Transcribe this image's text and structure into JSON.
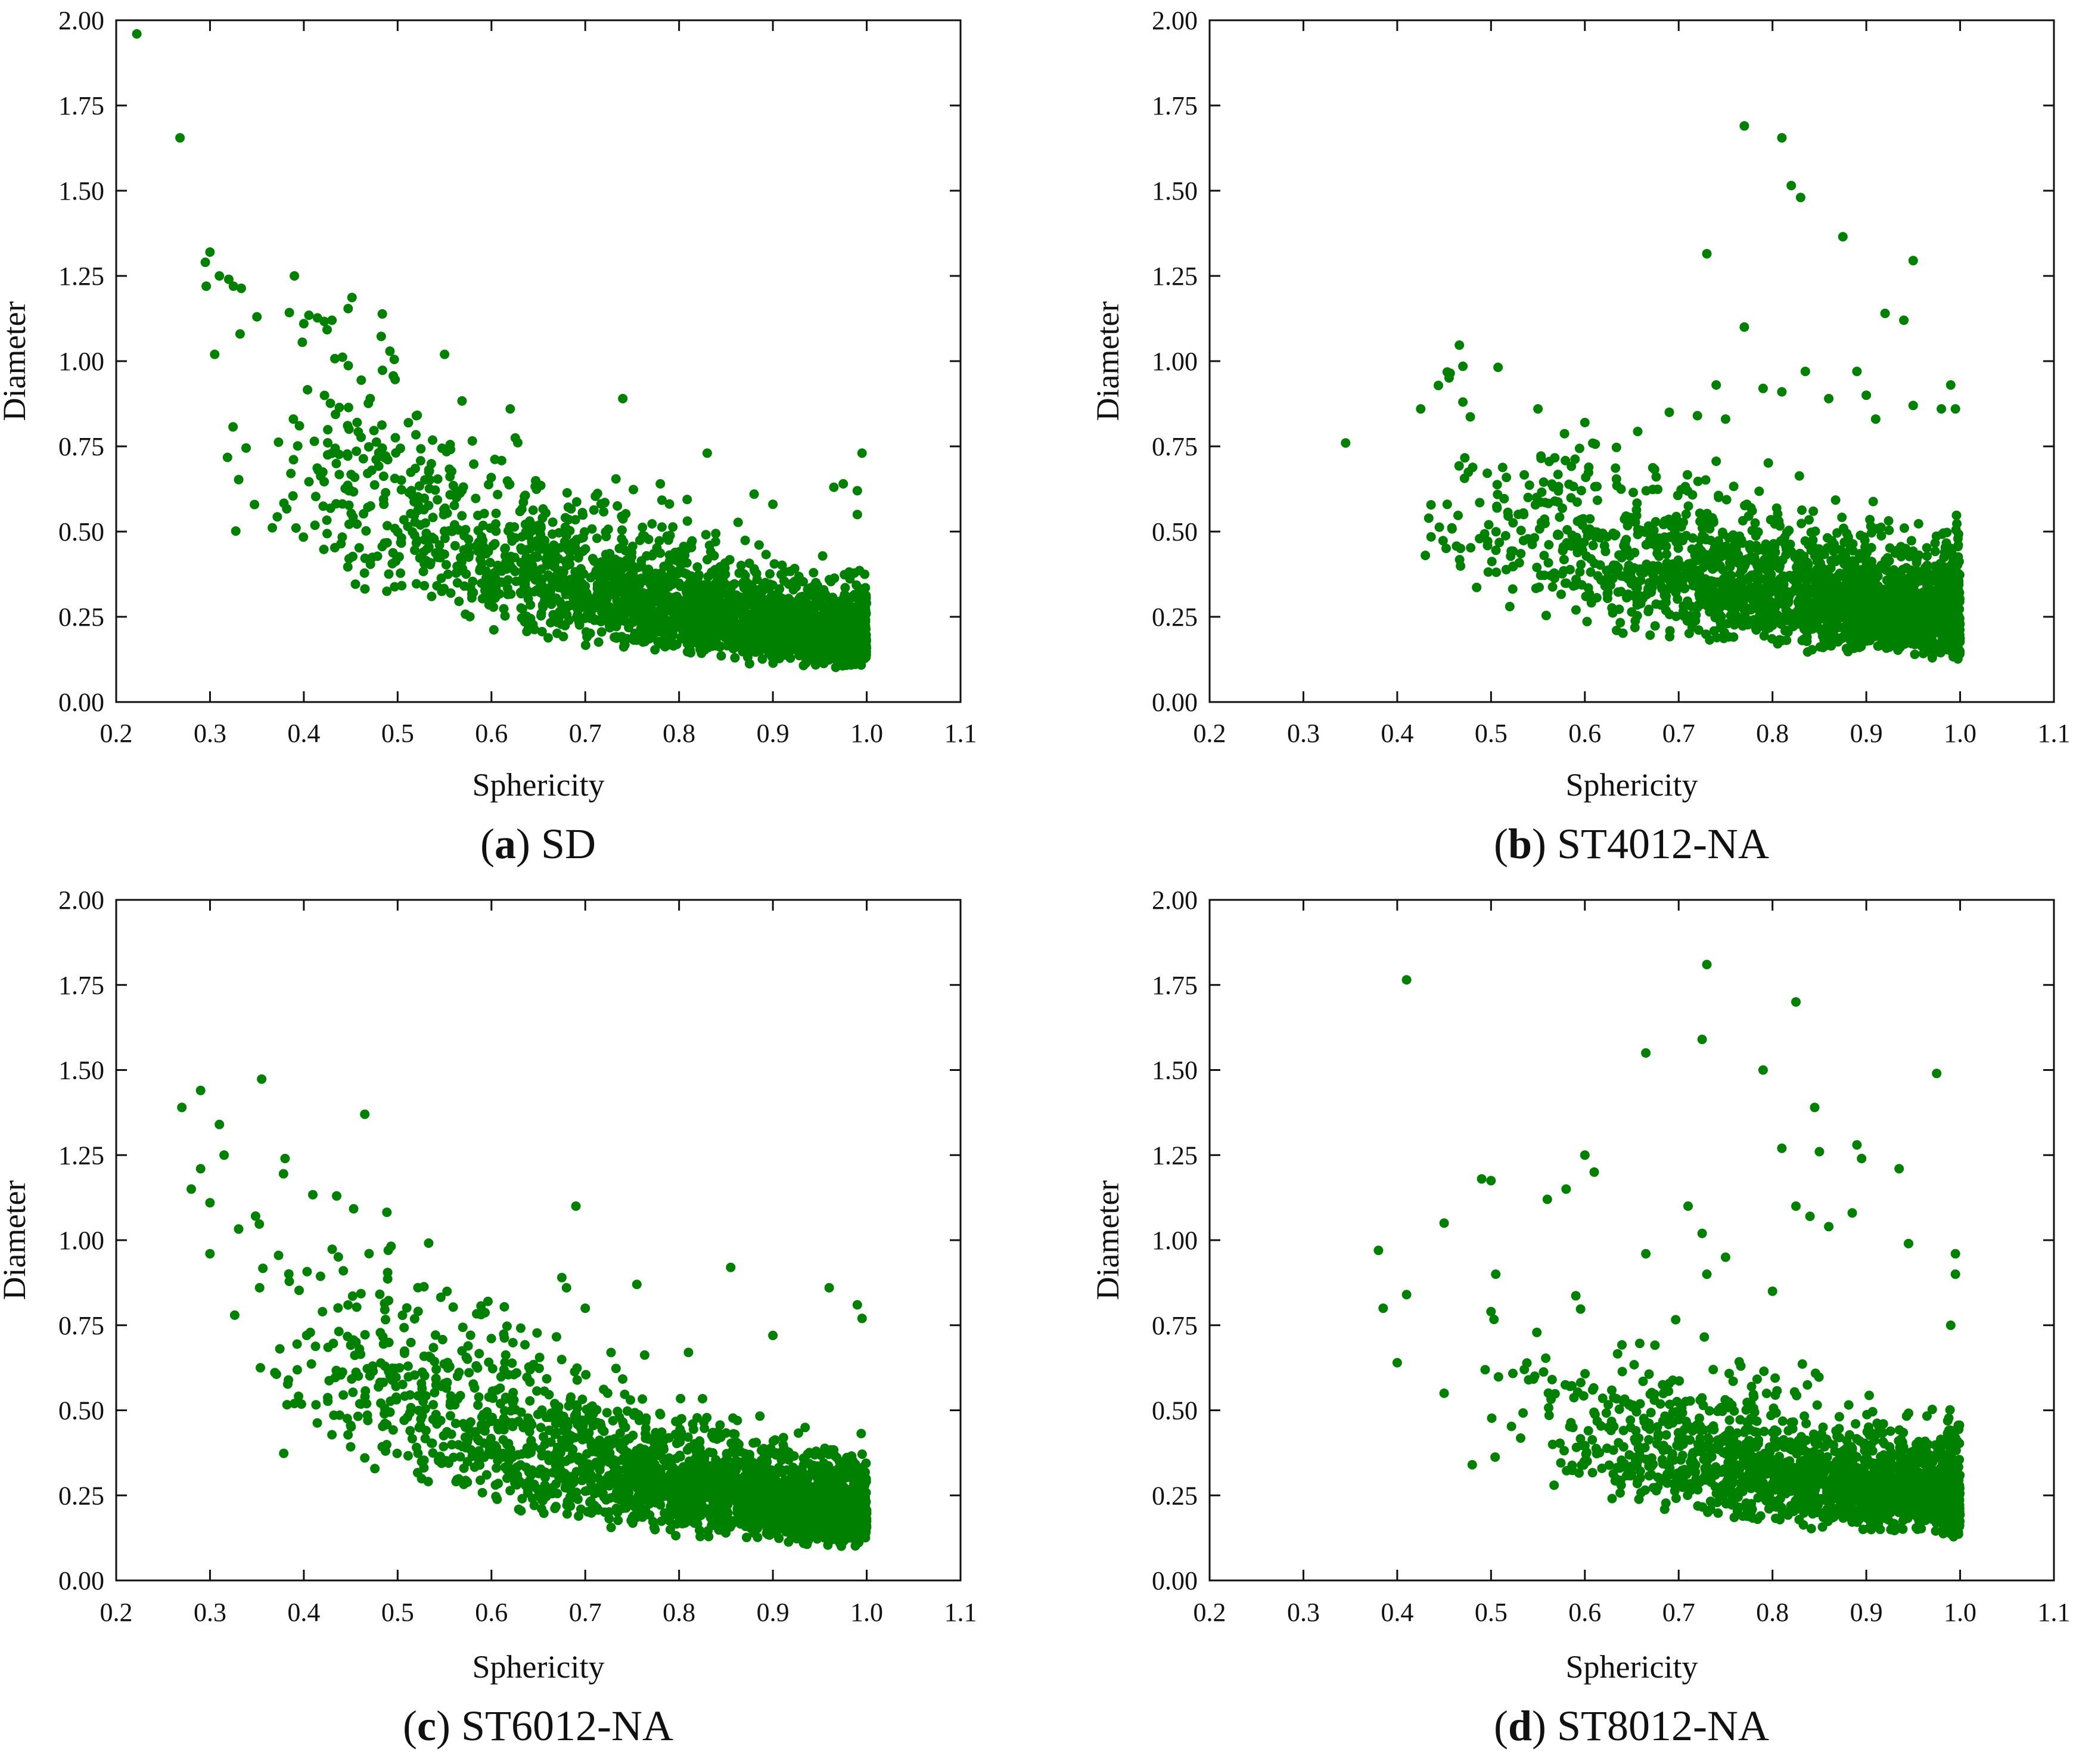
{
  "figure": {
    "marker_color": "#008000",
    "axis_color": "#111111"
  },
  "chart_data": [
    {
      "type": "scatter",
      "id": "a",
      "caption_letter": "a",
      "caption_text": "SD",
      "xlabel": "Sphericity",
      "ylabel": "Diameter",
      "xlim": [
        0.2,
        1.1
      ],
      "ylim": [
        0.0,
        2.0
      ],
      "xticks": [
        "0.2",
        "0.3",
        "0.4",
        "0.5",
        "0.6",
        "0.7",
        "0.8",
        "0.9",
        "1.0",
        "1.1"
      ],
      "yticks": [
        "0.00",
        "0.25",
        "0.50",
        "0.75",
        "1.00",
        "1.25",
        "1.50",
        "1.75",
        "2.00"
      ],
      "series": [
        {
          "name": "SD",
          "generator": {
            "n": 2600,
            "x_min": 0.28,
            "x_mode": 0.85,
            "y_base_at_x0": 1.1,
            "y_floor": 0.1,
            "decay": 3.2,
            "spread": 0.55,
            "spike_width": 0.03,
            "seed": 11
          },
          "outliers": [
            [
              0.222,
              1.96
            ],
            [
              0.268,
              1.655
            ],
            [
              0.3,
              1.32
            ],
            [
              0.295,
              1.29
            ],
            [
              0.296,
              1.22
            ],
            [
              0.31,
              1.25
            ],
            [
              0.32,
              1.24
            ],
            [
              0.325,
              1.22
            ],
            [
              0.305,
              1.02
            ],
            [
              0.39,
              1.25
            ],
            [
              0.35,
              1.13
            ],
            [
              0.4,
              1.11
            ],
            [
              0.43,
              1.12
            ],
            [
              0.55,
              1.02
            ],
            [
              0.74,
              0.89
            ],
            [
              0.62,
              0.86
            ],
            [
              0.52,
              0.84
            ],
            [
              0.83,
              0.73
            ],
            [
              0.995,
              0.73
            ],
            [
              0.88,
              0.61
            ],
            [
              0.9,
              0.58
            ],
            [
              0.965,
              0.63
            ],
            [
              0.975,
              0.64
            ],
            [
              0.99,
              0.62
            ],
            [
              0.99,
              0.55
            ],
            [
              0.78,
              0.64
            ]
          ]
        }
      ]
    },
    {
      "type": "scatter",
      "id": "b",
      "caption_letter": "b",
      "caption_text": "ST4012-NA",
      "xlabel": "Sphericity",
      "ylabel": "Diameter",
      "xlim": [
        0.2,
        1.1
      ],
      "ylim": [
        0.0,
        2.0
      ],
      "xticks": [
        "0.2",
        "0.3",
        "0.4",
        "0.5",
        "0.6",
        "0.7",
        "0.8",
        "0.9",
        "1.0",
        "1.1"
      ],
      "yticks": [
        "0.00",
        "0.25",
        "0.50",
        "0.75",
        "1.00",
        "1.25",
        "1.50",
        "1.75",
        "2.00"
      ],
      "series": [
        {
          "name": "ST4012-NA",
          "generator": {
            "n": 2300,
            "x_min": 0.42,
            "x_mode": 0.86,
            "y_base_at_x0": 0.62,
            "y_floor": 0.1,
            "decay": 2.0,
            "spread": 0.55,
            "spike_width": 0.015,
            "seed": 23
          },
          "outliers": [
            [
              0.345,
              0.76
            ],
            [
              0.77,
              1.69
            ],
            [
              0.81,
              1.655
            ],
            [
              0.82,
              1.515
            ],
            [
              0.83,
              1.48
            ],
            [
              0.875,
              1.365
            ],
            [
              0.73,
              1.315
            ],
            [
              0.95,
              1.295
            ],
            [
              0.92,
              1.14
            ],
            [
              0.94,
              1.12
            ],
            [
              0.77,
              1.1
            ],
            [
              0.835,
              0.97
            ],
            [
              0.89,
              0.97
            ],
            [
              0.47,
              0.985
            ],
            [
              0.79,
              0.92
            ],
            [
              0.81,
              0.91
            ],
            [
              0.9,
              0.9
            ],
            [
              0.99,
              0.93
            ],
            [
              0.74,
              0.93
            ],
            [
              0.95,
              0.87
            ],
            [
              0.86,
              0.89
            ],
            [
              0.425,
              0.86
            ],
            [
              0.55,
              0.86
            ],
            [
              0.6,
              0.82
            ],
            [
              0.69,
              0.85
            ],
            [
              0.72,
              0.84
            ],
            [
              0.75,
              0.83
            ],
            [
              0.91,
              0.83
            ],
            [
              0.995,
              0.86
            ],
            [
              0.98,
              0.86
            ],
            [
              0.43,
              0.43
            ],
            [
              0.52,
              0.28
            ],
            [
              0.47,
              0.88
            ]
          ]
        }
      ]
    },
    {
      "type": "scatter",
      "id": "c",
      "caption_letter": "c",
      "caption_text": "ST6012-NA",
      "xlabel": "Sphericity",
      "ylabel": "Diameter",
      "xlim": [
        0.2,
        1.1
      ],
      "ylim": [
        0.0,
        2.0
      ],
      "xticks": [
        "0.2",
        "0.3",
        "0.4",
        "0.5",
        "0.6",
        "0.7",
        "0.8",
        "0.9",
        "1.0",
        "1.1"
      ],
      "yticks": [
        "0.00",
        "0.25",
        "0.50",
        "0.75",
        "1.00",
        "1.25",
        "1.50",
        "1.75",
        "2.00"
      ],
      "series": [
        {
          "name": "ST6012-NA",
          "generator": {
            "n": 2500,
            "x_min": 0.3,
            "x_mode": 0.84,
            "y_base_at_x0": 0.98,
            "y_floor": 0.1,
            "decay": 3.0,
            "spread": 0.55,
            "spike_width": 0.03,
            "seed": 37
          },
          "outliers": [
            [
              0.27,
              1.39
            ],
            [
              0.29,
              1.44
            ],
            [
              0.28,
              1.15
            ],
            [
              0.29,
              1.21
            ],
            [
              0.31,
              1.34
            ],
            [
              0.315,
              1.25
            ],
            [
              0.3,
              1.11
            ],
            [
              0.3,
              0.96
            ],
            [
              0.38,
              1.24
            ],
            [
              0.435,
              1.13
            ],
            [
              0.465,
              1.37
            ],
            [
              0.49,
              0.97
            ],
            [
              0.69,
              1.1
            ],
            [
              0.755,
              0.87
            ],
            [
              0.855,
              0.92
            ],
            [
              0.96,
              0.86
            ],
            [
              0.99,
              0.81
            ],
            [
              0.995,
              0.77
            ],
            [
              0.675,
              0.89
            ],
            [
              0.68,
              0.86
            ],
            [
              0.81,
              0.67
            ],
            [
              0.39,
              0.52
            ],
            [
              0.465,
              0.36
            ],
            [
              0.9,
              0.72
            ],
            [
              0.7,
              0.8
            ]
          ]
        }
      ]
    },
    {
      "type": "scatter",
      "id": "d",
      "caption_letter": "d",
      "caption_text": "ST8012-NA",
      "xlabel": "Sphericity",
      "ylabel": "Diameter",
      "xlim": [
        0.2,
        1.1
      ],
      "ylim": [
        0.0,
        2.0
      ],
      "xticks": [
        "0.2",
        "0.3",
        "0.4",
        "0.5",
        "0.6",
        "0.7",
        "0.8",
        "0.9",
        "1.0",
        "1.1"
      ],
      "yticks": [
        "0.00",
        "0.25",
        "0.50",
        "0.75",
        "1.00",
        "1.25",
        "1.50",
        "1.75",
        "2.00"
      ],
      "series": [
        {
          "name": "ST8012-NA",
          "generator": {
            "n": 1800,
            "x_min": 0.48,
            "x_mode": 0.86,
            "y_base_at_x0": 0.55,
            "y_floor": 0.1,
            "decay": 2.0,
            "spread": 0.55,
            "spike_width": 0.015,
            "seed": 53
          },
          "outliers": [
            [
              0.41,
              1.765
            ],
            [
              0.73,
              1.81
            ],
            [
              0.825,
              1.7
            ],
            [
              0.725,
              1.59
            ],
            [
              0.665,
              1.55
            ],
            [
              0.79,
              1.5
            ],
            [
              0.975,
              1.49
            ],
            [
              0.845,
              1.39
            ],
            [
              0.89,
              1.28
            ],
            [
              0.895,
              1.24
            ],
            [
              0.85,
              1.26
            ],
            [
              0.81,
              1.27
            ],
            [
              0.935,
              1.21
            ],
            [
              0.6,
              1.25
            ],
            [
              0.61,
              1.2
            ],
            [
              0.49,
              1.18
            ],
            [
              0.5,
              1.175
            ],
            [
              0.56,
              1.12
            ],
            [
              0.58,
              1.15
            ],
            [
              0.71,
              1.1
            ],
            [
              0.825,
              1.1
            ],
            [
              0.885,
              1.08
            ],
            [
              0.725,
              1.02
            ],
            [
              0.84,
              1.07
            ],
            [
              0.86,
              1.04
            ],
            [
              0.945,
              0.99
            ],
            [
              0.995,
              0.96
            ],
            [
              0.38,
              0.97
            ],
            [
              0.45,
              1.05
            ],
            [
              0.665,
              0.96
            ],
            [
              0.75,
              0.95
            ],
            [
              0.73,
              0.9
            ],
            [
              0.41,
              0.84
            ],
            [
              0.385,
              0.8
            ],
            [
              0.4,
              0.64
            ],
            [
              0.45,
              0.55
            ],
            [
              0.48,
              0.34
            ],
            [
              0.505,
              0.9
            ],
            [
              0.5,
              0.79
            ],
            [
              0.995,
              0.9
            ],
            [
              0.99,
              0.75
            ],
            [
              0.8,
              0.85
            ]
          ]
        }
      ]
    }
  ]
}
